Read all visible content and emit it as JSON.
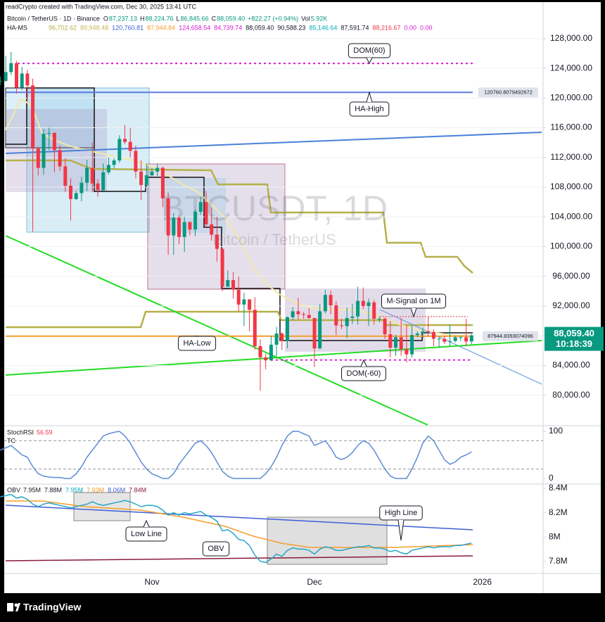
{
  "header": {
    "credit": "readCrypto created with TradingView.com, Dec 30, 2025 13:41 UTC",
    "symbol": "Bitcoin / TetherUS · 1D · Binance",
    "quote": [
      {
        "key": "O",
        "value": "87,237.13"
      },
      {
        "key": "H",
        "value": "88,224.76"
      },
      {
        "key": "L",
        "value": "86,845.66"
      },
      {
        "key": "C",
        "value": "88,059.40"
      }
    ],
    "change": "+822.27 (+0.94%)",
    "volume": {
      "key": "Vol",
      "value": "5.92K"
    },
    "quote_color": "#089981",
    "indicator": {
      "name": "HA-MS",
      "values": [
        {
          "text": "96,702.62",
          "color": "#b5b04a"
        },
        {
          "text": "89,948.48",
          "color": "#c9b85a"
        },
        {
          "text": "120,760.81",
          "color": "#3d5fd9"
        },
        {
          "text": "87,944.84",
          "color": "#f59e2a"
        },
        {
          "text": "124,658.54",
          "color": "#d81bd8"
        },
        {
          "text": "84,739.74",
          "color": "#d81bd8"
        },
        {
          "text": "88,059.40",
          "color": "#131722"
        },
        {
          "text": "90,588.23",
          "color": "#131722"
        },
        {
          "text": "85,146.64",
          "color": "#00acc1"
        },
        {
          "text": "87,591.74",
          "color": "#131722"
        },
        {
          "text": "88,216.67",
          "color": "#f23645"
        },
        {
          "text": "0.00",
          "color": "#d81bd8"
        },
        {
          "text": "0.00",
          "color": "#d81bd8"
        }
      ]
    }
  },
  "footer": {
    "logo": "TradingView"
  },
  "chart_data": [
    {
      "type": "candlestick",
      "watermark": [
        "BTCUSDT, 1D",
        "Bitcoin / TetherUS"
      ],
      "categories": [
        null,
        null,
        null,
        null,
        null,
        null,
        null,
        null,
        null,
        null,
        null,
        null,
        null,
        null,
        null,
        null,
        null,
        null,
        null,
        null,
        null,
        null,
        null,
        null,
        null,
        null,
        null,
        null,
        "Nov",
        null,
        null,
        null,
        null,
        null,
        null,
        null,
        null,
        null,
        null,
        null,
        null,
        null,
        null,
        null,
        null,
        null,
        null,
        null,
        null,
        null,
        null,
        null,
        null,
        null,
        null,
        null,
        null,
        null,
        "Dec",
        null,
        null,
        null,
        null,
        null,
        null,
        null,
        null,
        null,
        null,
        null,
        null,
        null,
        null,
        null,
        null,
        null,
        null,
        null,
        null,
        null,
        null,
        null,
        null,
        null,
        null,
        null,
        null,
        null,
        null,
        "2026"
      ],
      "open": [
        122200,
        122300,
        123500,
        124700,
        121400,
        123300,
        121700,
        113200,
        110600,
        115200,
        115300,
        113000,
        110800,
        108200,
        106400,
        107200,
        108600,
        110600,
        108500,
        107600,
        110000,
        111000,
        111600,
        114500,
        114100,
        112900,
        110100,
        108300,
        109600,
        110100,
        110600,
        106500,
        101500,
        103900,
        101300,
        103300,
        102300,
        104700,
        106000,
        103000,
        101600,
        99700,
        94600,
        95500,
        94200,
        92200,
        92900,
        91500,
        86600,
        85100,
        84700,
        86800,
        88300,
        87300,
        90500,
        91300,
        90900,
        90800,
        90400,
        86300,
        91300,
        93500,
        92100,
        89400,
        89300,
        90400,
        90600,
        92700,
        92000,
        92500,
        90300,
        90300,
        88200,
        86400,
        87800,
        86200,
        85500,
        88100,
        88300,
        88600,
        88500,
        87600,
        87600,
        87200,
        87300,
        87800,
        87800,
        87237.13,
        null,
        null
      ],
      "high": [
        122900,
        125700,
        126200,
        125000,
        124200,
        123800,
        122600,
        113400,
        115800,
        116000,
        115400,
        113600,
        111900,
        109200,
        107500,
        109400,
        111700,
        114000,
        109100,
        111200,
        112000,
        111900,
        115000,
        116400,
        116000,
        113600,
        111600,
        111200,
        110600,
        111200,
        110800,
        107300,
        104500,
        104200,
        104000,
        103400,
        105000,
        106700,
        107500,
        105300,
        104000,
        99800,
        96800,
        96600,
        96000,
        93800,
        92900,
        93200,
        87500,
        85600,
        88000,
        89200,
        88500,
        90600,
        91900,
        93100,
        91200,
        91700,
        90400,
        92300,
        94200,
        94100,
        92700,
        90300,
        91800,
        92300,
        94600,
        94500,
        93000,
        92800,
        90600,
        90500,
        90000,
        88100,
        90400,
        89500,
        89400,
        88600,
        89100,
        90600,
        88900,
        87900,
        88000,
        89500,
        88000,
        88000,
        90300,
        88224.76,
        null,
        null
      ],
      "low": [
        121700,
        122200,
        123100,
        120600,
        121100,
        119800,
        102000,
        109600,
        109700,
        113000,
        110000,
        110200,
        107400,
        103500,
        106300,
        106100,
        107500,
        107400,
        106700,
        107500,
        109700,
        110500,
        111300,
        113800,
        112000,
        109200,
        106300,
        108000,
        109400,
        109500,
        105300,
        98900,
        98900,
        100300,
        99300,
        101500,
        101400,
        104300,
        102500,
        100800,
        98000,
        94000,
        94600,
        93000,
        91300,
        89300,
        88600,
        86100,
        80600,
        83500,
        84600,
        85200,
        86100,
        86300,
        90100,
        90200,
        90300,
        90300,
        83800,
        86200,
        91000,
        90900,
        88100,
        88900,
        87700,
        89600,
        89500,
        91600,
        89300,
        89500,
        89800,
        87600,
        85100,
        85300,
        85300,
        84400,
        85100,
        87800,
        87600,
        87900,
        86600,
        86400,
        86900,
        86600,
        87100,
        87300,
        86600,
        86845.66,
        null,
        null
      ],
      "close": [
        122300,
        123500,
        124700,
        121400,
        123300,
        121700,
        113200,
        110600,
        115200,
        115300,
        113000,
        110800,
        108200,
        106400,
        107200,
        108600,
        110600,
        108500,
        107600,
        110000,
        111000,
        111600,
        114500,
        114100,
        112900,
        110100,
        108300,
        109600,
        110100,
        110600,
        106500,
        101500,
        103900,
        101300,
        103300,
        102300,
        104700,
        106000,
        103000,
        101600,
        99700,
        94600,
        95500,
        94200,
        92200,
        92900,
        91500,
        86600,
        85100,
        84700,
        86800,
        88300,
        87300,
        90500,
        91300,
        90900,
        90800,
        90400,
        86300,
        91300,
        93500,
        92100,
        89400,
        89300,
        90400,
        90600,
        92700,
        92000,
        92500,
        90300,
        90300,
        88200,
        86400,
        87800,
        86200,
        85500,
        88100,
        88300,
        88600,
        88500,
        87600,
        87600,
        87200,
        87300,
        87800,
        87800,
        87237.13,
        88059.4,
        null,
        null
      ],
      "up_color": "#089981",
      "down_color": "#f23645",
      "ylim": [
        75900,
        131300
      ],
      "yticks": [
        {
          "value": 80000,
          "label": "80,000.00"
        },
        {
          "value": 84000,
          "label": "84,000.00"
        },
        {
          "value": 88000,
          "label": "88,000.00"
        },
        {
          "value": 92000,
          "label": "92,000.00"
        },
        {
          "value": 96000,
          "label": "96,000.00"
        },
        {
          "value": 100000,
          "label": "100,000.00"
        },
        {
          "value": 104000,
          "label": "104,000.00"
        },
        {
          "value": 108000,
          "label": "108,000.00"
        },
        {
          "value": 112000,
          "label": "112,000.00"
        },
        {
          "value": 116000,
          "label": "116,000.00"
        },
        {
          "value": 120000,
          "label": "120,000.00"
        },
        {
          "value": 124000,
          "label": "124,000.00"
        },
        {
          "value": 128000,
          "label": "128,000.00"
        }
      ],
      "grid": true,
      "levels": [
        {
          "label": "DOM(60)",
          "value": 124658.54,
          "color": "#d81bd8"
        },
        {
          "label": "HA-High",
          "value": 120760.81,
          "color": "#5b7be0"
        },
        {
          "label": "M-Signal on 1M",
          "value": 90588.23,
          "color": "#e05a6a"
        },
        {
          "label": "HA-Low",
          "value": 87944.84,
          "color": "#f59e2a"
        },
        {
          "label": "DOM(-60)",
          "value": 84739.74,
          "color": "#d81bd8"
        }
      ],
      "price_tags": [
        {
          "value": 120760.8079492672,
          "label": "120760.8079492672"
        },
        {
          "value": 87944.8393074096,
          "label": "87944.8393074096"
        }
      ],
      "last_price": {
        "value": 88059.4,
        "label": "88,059.40"
      },
      "countdown": "10:18:39"
    },
    {
      "type": "line",
      "title": "StochRSI",
      "sub_label": "TC",
      "color": "#5c8bd6",
      "value_color": "#f23645",
      "values": [
        60,
        65,
        70,
        60,
        50,
        45,
        25,
        10,
        5,
        3,
        2,
        2,
        0,
        0,
        10,
        25,
        45,
        60,
        75,
        90,
        95,
        98,
        100,
        90,
        75,
        55,
        35,
        20,
        10,
        5,
        0,
        0,
        10,
        30,
        45,
        60,
        75,
        80,
        70,
        55,
        35,
        15,
        5,
        0,
        0,
        0,
        0,
        0,
        0,
        10,
        25,
        45,
        70,
        90,
        100,
        100,
        95,
        90,
        70,
        75,
        80,
        65,
        45,
        40,
        45,
        55,
        70,
        80,
        75,
        60,
        40,
        20,
        5,
        0,
        0,
        0,
        20,
        45,
        75,
        90,
        80,
        60,
        40,
        30,
        35,
        45,
        50,
        56.59
      ],
      "ylim": [
        -12,
        112
      ],
      "yticks": [
        0,
        100
      ],
      "levels": [
        20,
        80
      ]
    },
    {
      "type": "line",
      "title": "OBV",
      "color": "#26a6c9",
      "header_values": [
        {
          "text": "7.95M",
          "color": "#131722"
        },
        {
          "text": "7.88M",
          "color": "#131722"
        },
        {
          "text": "7.95M",
          "color": "#00acc1"
        },
        {
          "text": "7.93M",
          "color": "#f59e2a"
        },
        {
          "text": "8.06M",
          "color": "#3d5fd9"
        },
        {
          "text": "7.84M",
          "color": "#8b1a3a"
        }
      ],
      "values": [
        8330000,
        8340000,
        8350000,
        8320000,
        8330000,
        8310000,
        8270000,
        8250000,
        8270000,
        8280000,
        8270000,
        8260000,
        8250000,
        8240000,
        8250000,
        8260000,
        8270000,
        8290000,
        8270000,
        8260000,
        8270000,
        8280000,
        8290000,
        8300000,
        8290000,
        8270000,
        8250000,
        8260000,
        8260000,
        8250000,
        8220000,
        8180000,
        8200000,
        8180000,
        8200000,
        8190000,
        8200000,
        8210000,
        8180000,
        8160000,
        8130000,
        8050000,
        8060000,
        8030000,
        7980000,
        7970000,
        7930000,
        7850000,
        7800000,
        7790000,
        7820000,
        7860000,
        7840000,
        7890000,
        7910000,
        7900000,
        7900000,
        7890000,
        7860000,
        7900000,
        7920000,
        7910000,
        7890000,
        7890000,
        7900000,
        7910000,
        7920000,
        7920000,
        7930000,
        7910000,
        7910000,
        7900000,
        7880000,
        7890000,
        7870000,
        7860000,
        7890000,
        7900000,
        7910000,
        7920000,
        7910000,
        7920000,
        7920000,
        7920000,
        7930000,
        7930000,
        7940000,
        7950000
      ],
      "ylim": [
        7700000,
        8435000
      ],
      "yticks": [
        {
          "value": 7800000,
          "label": "7.8M"
        },
        {
          "value": 8000000,
          "label": "8M"
        },
        {
          "value": 8200000,
          "label": "8.2M"
        },
        {
          "value": 8400000,
          "label": "8.4M"
        }
      ],
      "annotations": [
        "High Line",
        "Low Line",
        "OBV"
      ]
    }
  ]
}
